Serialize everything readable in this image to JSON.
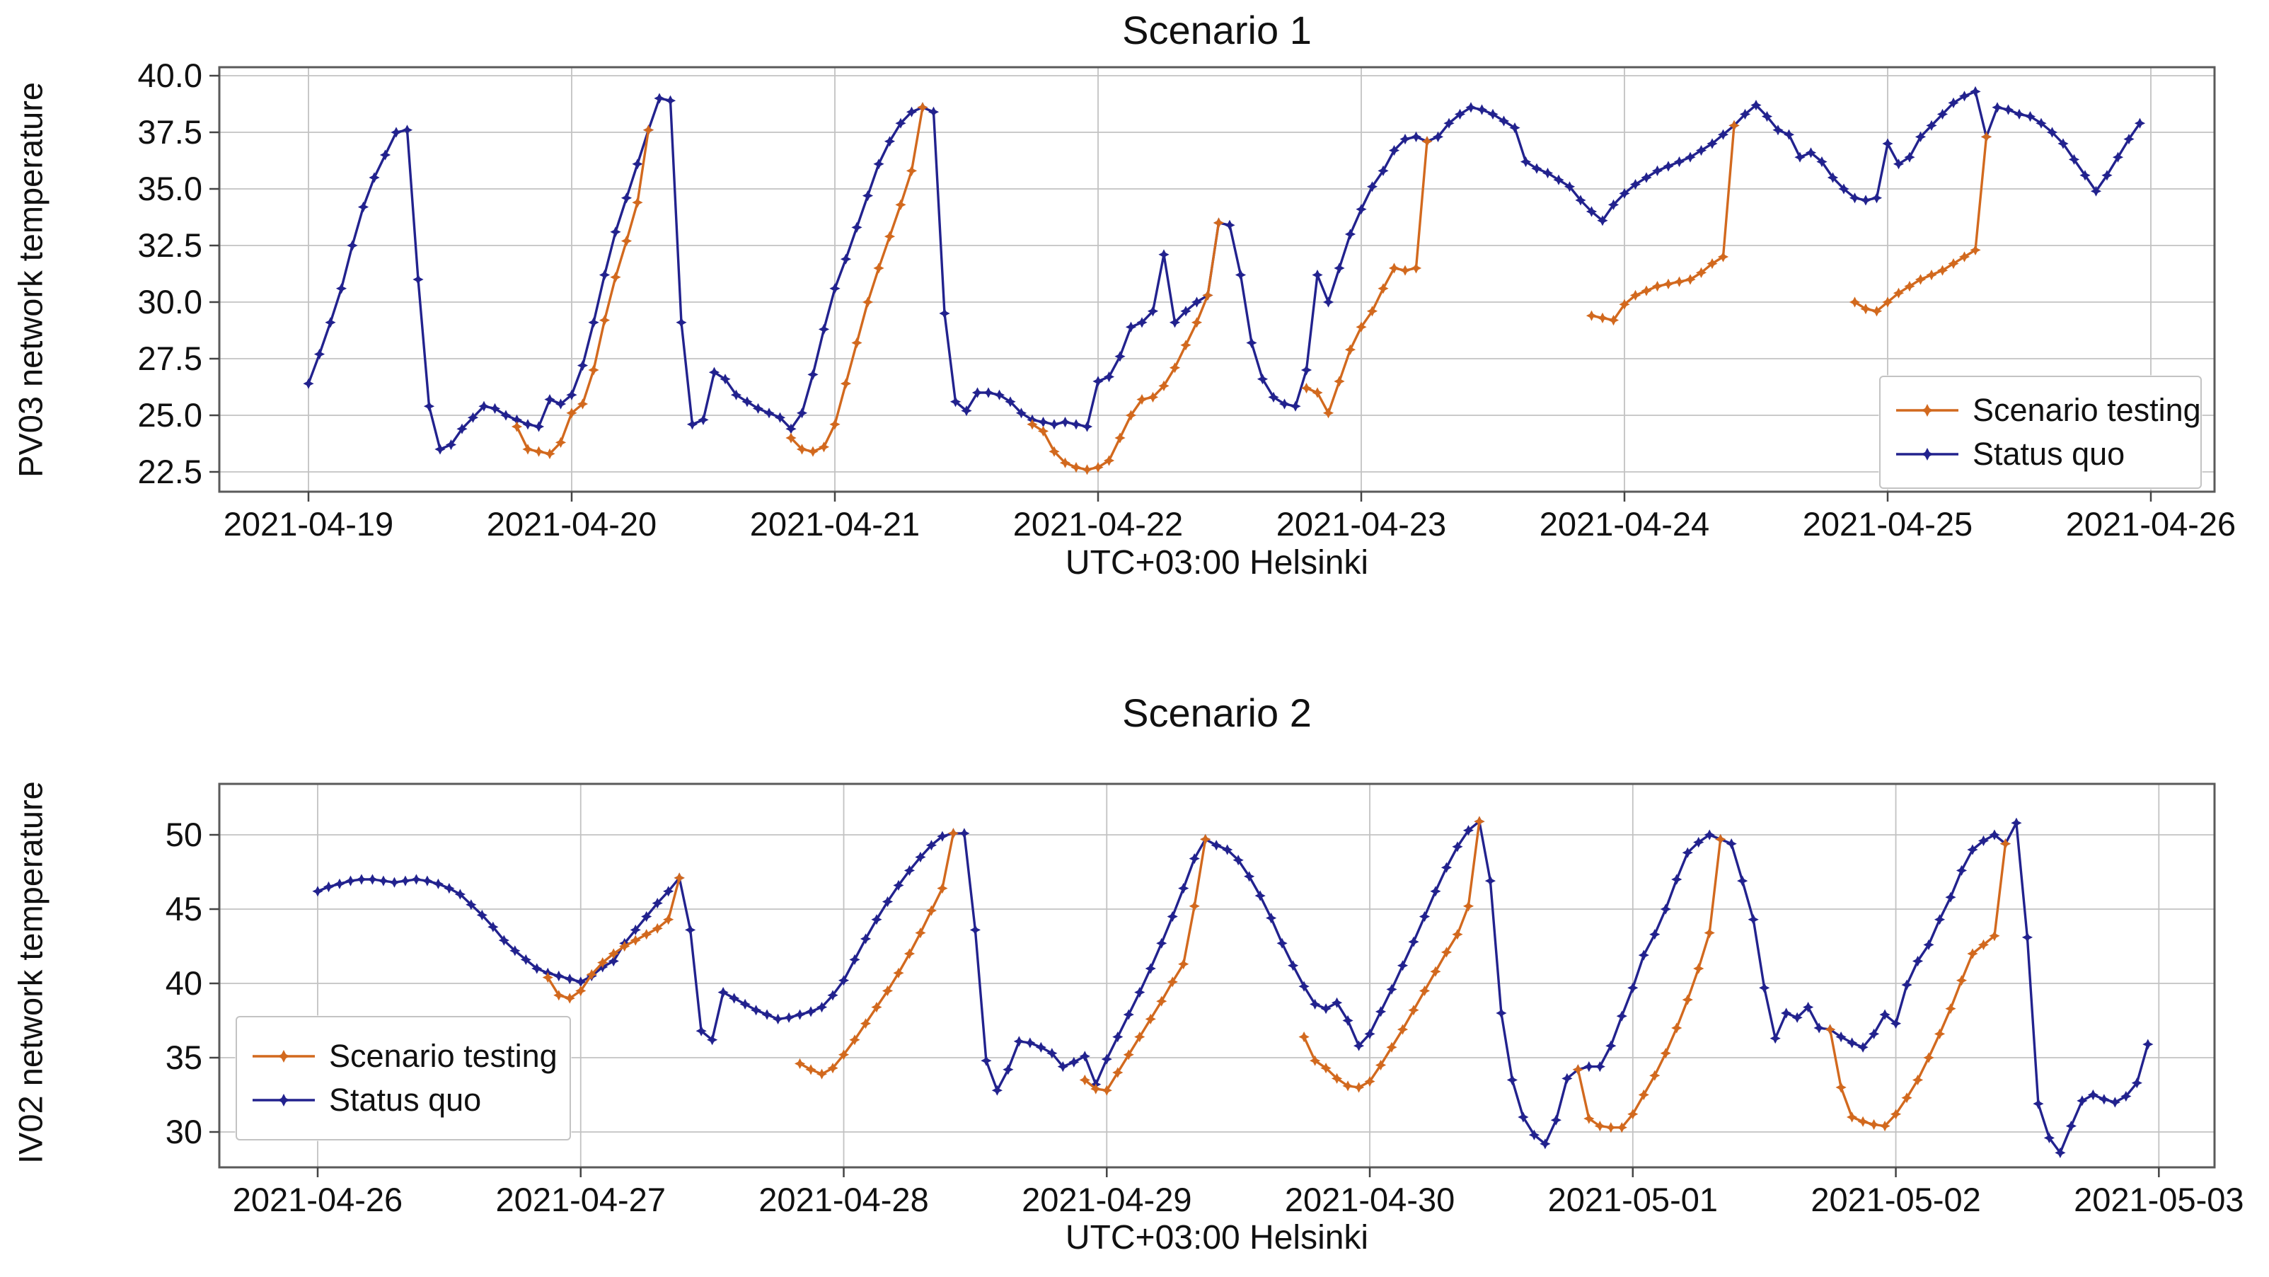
{
  "figure": {
    "background": "#ffffff"
  },
  "colors": {
    "scenario_testing": "#d2691e",
    "status_quo": "#22228e",
    "grid": "#c2c2c2",
    "spine": "#5a5a5a",
    "tick": "#444444",
    "text": "#111111"
  },
  "charts": [
    {
      "title": "Scenario 1",
      "ylabel": "PV03 network temperature",
      "xlabel": "UTC+03:00 Helsinki",
      "x_tick_labels": [
        "2021-04-19",
        "2021-04-20",
        "2021-04-21",
        "2021-04-22",
        "2021-04-23",
        "2021-04-24",
        "2021-04-25",
        "2021-04-26"
      ],
      "y_tick_labels": [
        "40.0",
        "37.5",
        "35.0",
        "32.5",
        "30.0",
        "27.5",
        "25.0",
        "22.5"
      ],
      "legend": {
        "position": "lower-right",
        "items": [
          {
            "label": "Scenario testing"
          },
          {
            "label": "Status quo"
          }
        ]
      }
    },
    {
      "title": "Scenario 2",
      "ylabel": "IV02 network temperature",
      "xlabel": "UTC+03:00 Helsinki",
      "x_tick_labels": [
        "2021-04-26",
        "2021-04-27",
        "2021-04-28",
        "2021-04-29",
        "2021-04-30",
        "2021-05-01",
        "2021-05-02",
        "2021-05-03"
      ],
      "y_tick_labels": [
        "50",
        "45",
        "40",
        "35",
        "30"
      ],
      "legend": {
        "position": "lower-left",
        "items": [
          {
            "label": "Scenario testing"
          },
          {
            "label": "Status quo"
          }
        ]
      }
    }
  ],
  "chart_data": [
    {
      "type": "line",
      "title": "Scenario 1",
      "xlabel": "UTC+03:00 Helsinki",
      "ylabel": "PV03 network temperature",
      "x_unit": "hours",
      "x_start": "2021-04-19 00:00",
      "x_days": [
        "2021-04-19",
        "2021-04-20",
        "2021-04-21",
        "2021-04-22",
        "2021-04-23",
        "2021-04-24",
        "2021-04-25",
        "2021-04-26"
      ],
      "y_ticks": [
        40.0,
        37.5,
        35.0,
        32.5,
        30.0,
        27.5,
        25.0,
        22.5
      ],
      "ylim": [
        21.6,
        40.4
      ],
      "grid": true,
      "legend_position": "lower-right",
      "series": [
        {
          "name": "Status quo",
          "color": "#22228e",
          "start_hour": 0,
          "values": [
            26.4,
            27.7,
            29.1,
            30.6,
            32.5,
            34.2,
            35.5,
            36.5,
            37.5,
            37.6,
            31.0,
            25.4,
            23.5,
            23.7,
            24.4,
            24.9,
            25.4,
            25.3,
            25.0,
            24.8,
            24.6,
            24.5,
            25.7,
            25.5,
            25.9,
            27.2,
            29.1,
            31.2,
            33.1,
            34.6,
            36.1,
            37.6,
            39.0,
            38.9,
            29.1,
            24.6,
            24.8,
            26.9,
            26.6,
            25.9,
            25.6,
            25.3,
            25.1,
            24.9,
            24.4,
            25.1,
            26.8,
            28.8,
            30.6,
            31.9,
            33.3,
            34.7,
            36.1,
            37.1,
            37.9,
            38.4,
            38.6,
            38.4,
            29.5,
            25.6,
            25.2,
            26.0,
            26.0,
            25.9,
            25.6,
            25.1,
            24.8,
            24.7,
            24.6,
            24.7,
            24.6,
            24.5,
            26.5,
            26.7,
            27.6,
            28.9,
            29.1,
            29.6,
            32.1,
            29.1,
            29.6,
            30.0,
            30.3,
            33.5,
            33.4,
            31.2,
            28.2,
            26.6,
            25.8,
            25.5,
            25.4,
            27.0,
            31.2,
            30.0,
            31.5,
            33.0,
            34.1,
            35.1,
            35.8,
            36.7,
            37.2,
            37.3,
            37.1,
            37.3,
            37.9,
            38.3,
            38.6,
            38.5,
            38.3,
            38.0,
            37.7,
            36.2,
            35.9,
            35.7,
            35.4,
            35.1,
            34.5,
            34.0,
            33.6,
            34.3,
            34.8,
            35.2,
            35.5,
            35.8,
            36.0,
            36.2,
            36.4,
            36.7,
            37.0,
            37.4,
            37.8,
            38.3,
            38.7,
            38.2,
            37.6,
            37.4,
            36.4,
            36.6,
            36.2,
            35.5,
            35.0,
            34.6,
            34.5,
            34.6,
            37.0,
            36.1,
            36.4,
            37.3,
            37.8,
            38.3,
            38.8,
            39.1,
            39.3,
            37.3,
            38.6,
            38.5,
            38.3,
            38.2,
            37.9,
            37.5,
            37.0,
            36.3,
            35.6,
            34.9,
            35.6,
            36.4,
            37.2,
            37.9
          ]
        },
        {
          "name": "Scenario testing",
          "color": "#d2691e",
          "segments": [
            {
              "start_hour": 19,
              "values": [
                24.5,
                23.5,
                23.4,
                23.3,
                23.8,
                25.1,
                25.5,
                27.0,
                29.2,
                31.1,
                32.7,
                34.4,
                37.6
              ]
            },
            {
              "start_hour": 44,
              "values": [
                24.0,
                23.5,
                23.4,
                23.6,
                24.6,
                26.4,
                28.2,
                30.0,
                31.5,
                32.9,
                34.3,
                35.8,
                38.6
              ]
            },
            {
              "start_hour": 66,
              "values": [
                24.6,
                24.3,
                23.4,
                22.9,
                22.7,
                22.6,
                22.7,
                23.0,
                24.0,
                25.0,
                25.7,
                25.8,
                26.3,
                27.1,
                28.1,
                29.1,
                30.3,
                33.5
              ]
            },
            {
              "start_hour": 91,
              "values": [
                26.2,
                26.0,
                25.1,
                26.5,
                27.9,
                28.9,
                29.6,
                30.6,
                31.5,
                31.4,
                31.5,
                37.1
              ]
            },
            {
              "start_hour": 117,
              "values": [
                29.4,
                29.3,
                29.2,
                29.9,
                30.3,
                30.5,
                30.7,
                30.8,
                30.9,
                31.0,
                31.3,
                31.7,
                32.0,
                37.8
              ]
            },
            {
              "start_hour": 141,
              "values": [
                30.0,
                29.7,
                29.6,
                30.0,
                30.4,
                30.7,
                31.0,
                31.2,
                31.4,
                31.7,
                32.0,
                32.3,
                37.3
              ]
            }
          ]
        }
      ]
    },
    {
      "type": "line",
      "title": "Scenario 2",
      "xlabel": "UTC+03:00 Helsinki",
      "ylabel": "IV02 network temperature",
      "x_unit": "hours",
      "x_start": "2021-04-26 00:00",
      "x_days": [
        "2021-04-26",
        "2021-04-27",
        "2021-04-28",
        "2021-04-29",
        "2021-04-30",
        "2021-05-01",
        "2021-05-02",
        "2021-05-03"
      ],
      "y_ticks": [
        50,
        45,
        40,
        35,
        30
      ],
      "ylim": [
        27.5,
        52.3
      ],
      "grid": true,
      "legend_position": "lower-left",
      "series": [
        {
          "name": "Status quo",
          "color": "#22228e",
          "start_hour": 0,
          "values": [
            46.2,
            46.5,
            46.7,
            46.9,
            47.0,
            47.0,
            46.9,
            46.8,
            46.9,
            47.0,
            46.9,
            46.7,
            46.4,
            46.0,
            45.3,
            44.6,
            43.8,
            42.9,
            42.2,
            41.6,
            41.0,
            40.7,
            40.5,
            40.3,
            40.1,
            40.5,
            41.1,
            41.5,
            42.7,
            43.6,
            44.5,
            45.4,
            46.2,
            47.1,
            43.6,
            36.8,
            36.2,
            39.4,
            39.0,
            38.6,
            38.2,
            37.9,
            37.6,
            37.7,
            37.9,
            38.1,
            38.4,
            39.2,
            40.2,
            41.6,
            43.0,
            44.3,
            45.5,
            46.6,
            47.6,
            48.5,
            49.3,
            49.9,
            50.1,
            50.1,
            43.6,
            34.8,
            32.8,
            34.2,
            36.1,
            36.0,
            35.7,
            35.3,
            34.4,
            34.7,
            35.1,
            33.2,
            34.9,
            36.4,
            37.9,
            39.4,
            41.0,
            42.7,
            44.5,
            46.4,
            48.4,
            49.7,
            49.3,
            49.0,
            48.3,
            47.2,
            45.9,
            44.4,
            42.7,
            41.2,
            39.8,
            38.6,
            38.3,
            38.7,
            37.5,
            35.8,
            36.6,
            38.1,
            39.6,
            41.2,
            42.8,
            44.5,
            46.2,
            47.8,
            49.2,
            50.3,
            50.9,
            46.9,
            38.0,
            33.5,
            31.0,
            29.8,
            29.2,
            30.8,
            33.6,
            34.2,
            34.4,
            34.4,
            35.8,
            37.8,
            39.7,
            41.9,
            43.3,
            45.0,
            47.0,
            48.8,
            49.5,
            50.0,
            49.7,
            49.4,
            46.9,
            44.3,
            39.7,
            36.3,
            38.0,
            37.7,
            38.4,
            37.0,
            36.9,
            36.4,
            36.0,
            35.7,
            36.6,
            37.9,
            37.3,
            39.9,
            41.5,
            42.6,
            44.3,
            45.8,
            47.6,
            49.0,
            49.6,
            50.0,
            49.4,
            50.8,
            43.1,
            31.9,
            29.6,
            28.6,
            30.4,
            32.1,
            32.5,
            32.2,
            32.0,
            32.4,
            33.3,
            35.9
          ]
        },
        {
          "name": "Scenario testing",
          "color": "#d2691e",
          "segments": [
            {
              "start_hour": 21,
              "values": [
                40.4,
                39.2,
                39.0,
                39.5,
                40.6,
                41.4,
                42.0,
                42.5,
                42.9,
                43.3,
                43.7,
                44.3,
                47.1
              ]
            },
            {
              "start_hour": 44,
              "values": [
                34.6,
                34.2,
                33.9,
                34.3,
                35.2,
                36.2,
                37.3,
                38.4,
                39.5,
                40.7,
                42.0,
                43.4,
                44.9,
                46.4,
                50.1
              ]
            },
            {
              "start_hour": 70,
              "values": [
                33.5,
                32.9,
                32.8,
                34.0,
                35.2,
                36.4,
                37.6,
                38.8,
                40.1,
                41.3,
                45.2,
                49.7
              ]
            },
            {
              "start_hour": 90,
              "values": [
                36.4,
                34.8,
                34.3,
                33.6,
                33.1,
                33.0,
                33.4,
                34.5,
                35.7,
                36.9,
                38.2,
                39.5,
                40.8,
                42.1,
                43.3,
                45.2,
                50.9
              ]
            },
            {
              "start_hour": 115,
              "values": [
                34.2,
                30.9,
                30.4,
                30.3,
                30.3,
                31.2,
                32.5,
                33.8,
                35.3,
                37.0,
                38.9,
                41.0,
                43.4,
                49.7
              ]
            },
            {
              "start_hour": 138,
              "values": [
                36.9,
                33.0,
                31.0,
                30.7,
                30.5,
                30.4,
                31.2,
                32.3,
                33.5,
                35.0,
                36.6,
                38.3,
                40.2,
                42.0,
                42.6,
                43.2,
                49.4
              ]
            }
          ]
        }
      ]
    }
  ]
}
